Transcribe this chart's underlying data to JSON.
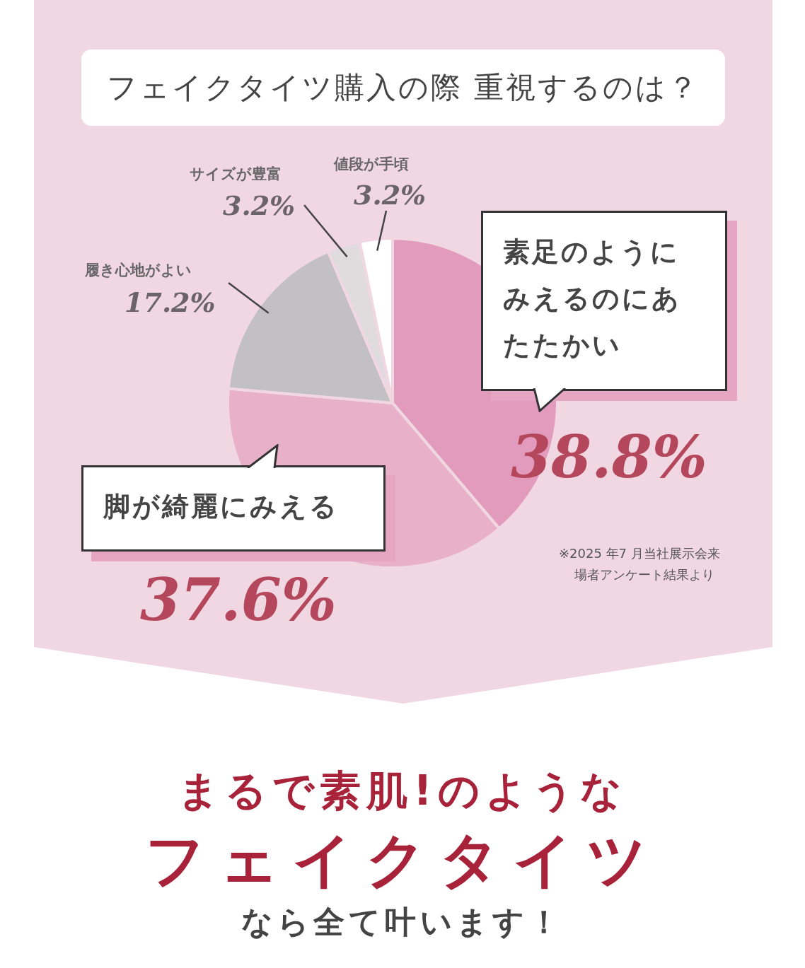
{
  "chart_data": {
    "type": "pie",
    "title": "フェイクタイツ購入の際 重視するのは？",
    "categories": [
      "素足のようにみえるのにあたたかい",
      "脚が綺麗にみえる",
      "履き心地がよい",
      "サイズが豊富",
      "値段が手頃"
    ],
    "values": [
      38.8,
      37.6,
      17.2,
      3.2,
      3.2
    ],
    "value_labels": [
      "38.8%",
      "37.6%",
      "17.2%",
      "3.2%",
      "3.2%"
    ],
    "colors": [
      "#e29bbd",
      "#e8b0c9",
      "#c2c0c2",
      "#e0dcdd",
      "#ffffff"
    ],
    "legend": false,
    "annotations": [
      "※2025 年7 月当社展示会来場者アンケート結果より",
      "まるで素肌!のような",
      "フェイクタイツ",
      "なら全て叶います！"
    ]
  }
}
